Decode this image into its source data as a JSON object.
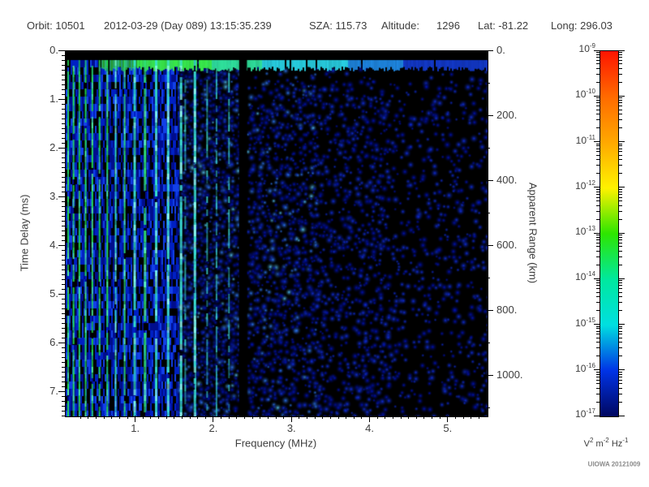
{
  "header": {
    "orbit": "Orbit: 10501",
    "datetime": "2012-03-29 (Day 089) 13:15:35.239",
    "sza": "SZA: 115.73",
    "altitude_label": "Altitude:",
    "altitude_value": "1296",
    "lat": "Lat: -81.22",
    "long": "Long: 296.03"
  },
  "footer": {
    "credit": "UIOWA 20121009"
  },
  "chart_data": {
    "type": "heatmap",
    "title": "",
    "xlabel": "Frequency (MHz)",
    "ylabel_left": "Time Delay (ms)",
    "ylabel_right": "Apparent Range (km)",
    "x_range_mhz": [
      0.1,
      5.5
    ],
    "x_major_ticks": [
      1,
      2,
      3,
      4,
      5
    ],
    "x_minor_step": 0.1,
    "y_left_range_ms": [
      0,
      7.5
    ],
    "y_left_major_ticks": [
      0,
      1,
      2,
      3,
      4,
      5,
      6,
      7
    ],
    "y_left_minor_step": 0.1,
    "y_right_range_km": [
      0,
      1125
    ],
    "y_right_major_ticks": [
      0,
      200,
      400,
      600,
      800,
      1000
    ],
    "y_right_minor_step": 100,
    "grid": false,
    "legend_position": "right-colorbar",
    "colorbar": {
      "scale": "log",
      "tick_base": "10",
      "tick_exponents": [
        -9,
        -10,
        -11,
        -12,
        -13,
        -14,
        -15,
        -16,
        -17
      ],
      "unit": "V^2 m^-2 Hz^-1",
      "gradient": [
        {
          "pos": 0.0,
          "color": "#ff1400"
        },
        {
          "pos": 0.125,
          "color": "#ff6a00"
        },
        {
          "pos": 0.25,
          "color": "#ffa800"
        },
        {
          "pos": 0.375,
          "color": "#fff200"
        },
        {
          "pos": 0.5,
          "color": "#2de600"
        },
        {
          "pos": 0.625,
          "color": "#00e89e"
        },
        {
          "pos": 0.75,
          "color": "#00dfe0"
        },
        {
          "pos": 0.875,
          "color": "#0033e6"
        },
        {
          "pos": 1.0,
          "color": "#000760"
        }
      ]
    },
    "features": {
      "seed": 20121009,
      "background": "#000000",
      "surface_echo_band_ms": [
        0.18,
        0.38
      ],
      "plasma_stripe_region_mhz": [
        0.1,
        1.8
      ],
      "data_gap_mhz": [
        2.32,
        2.42
      ],
      "noise_density_by_mhz": [
        {
          "range": [
            1.55,
            2.32
          ],
          "density": 0.8
        },
        {
          "range": [
            2.42,
            3.3
          ],
          "density": 0.62
        },
        {
          "range": [
            3.3,
            4.2
          ],
          "density": 0.45
        },
        {
          "range": [
            4.2,
            5.5
          ],
          "density": 0.27
        }
      ],
      "stripe_colors": [
        "#24e854",
        "#35e2cc",
        "#3ce4d8"
      ],
      "band_colors": [
        "#38e84a",
        "#2fe19b",
        "#28cfe2",
        "#1e86e0",
        "#1238c8"
      ],
      "blob_colors": [
        "#0012c0",
        "#1030e8",
        "#2e7bff",
        "#56c8ff"
      ]
    }
  }
}
